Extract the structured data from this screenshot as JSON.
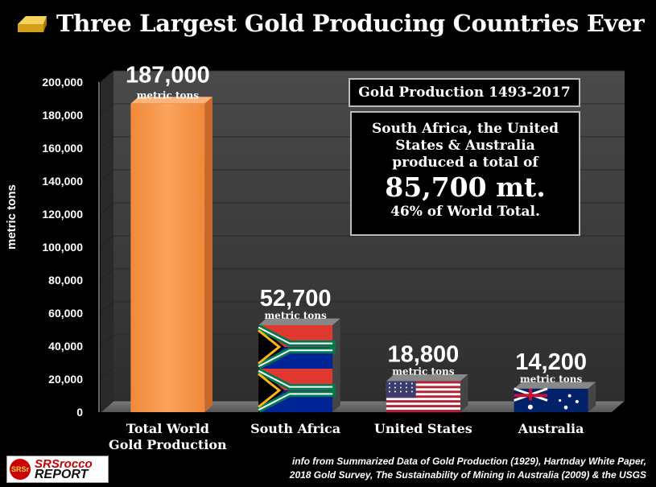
{
  "page": {
    "title": "Three Largest Gold Producing Countries Ever",
    "title_icon": "gold-bar-icon",
    "info_box_title": "Gold Production 1493-2017",
    "summary": {
      "line1": "South Africa, the United",
      "line2": "States & Australia",
      "line3": "produced a total of",
      "total": "85,700 mt.",
      "share": "46% of World Total."
    },
    "source_line1": "info from Summarized Data of Gold Production (1929), Hartnday White Paper,",
    "source_line2": "2018 Gold Survey, The Sustainability of Mining in Australia (2009) & the USGS",
    "logo": {
      "badge": "SRSr",
      "line1": "SRSrocco",
      "line2": "REPORT"
    }
  },
  "chart_data": {
    "type": "bar",
    "title": "Three Largest Gold Producing Countries Ever",
    "ylabel": "metric tons",
    "ylim": [
      0,
      200000
    ],
    "yticks": [
      "0",
      "20,000",
      "40,000",
      "60,000",
      "80,000",
      "100,000",
      "120,000",
      "140,000",
      "160,000",
      "180,000",
      "200,000"
    ],
    "categories": [
      [
        "Total World",
        "Gold Production"
      ],
      [
        "South Africa"
      ],
      [
        "United States"
      ],
      [
        "Australia"
      ]
    ],
    "values": [
      187000,
      52700,
      18800,
      14200
    ],
    "value_labels": [
      "187,000",
      "52,700",
      "18,800",
      "14,200"
    ],
    "unit_label": "metric tons",
    "bar_fills": [
      "orange",
      "flag-south-africa",
      "flag-united-states",
      "flag-australia"
    ],
    "colors": {
      "world_bar": "#f7964a",
      "world_bar_side": "#c8692c",
      "wall": "#3a3a3a",
      "floor": "#5a5a5a"
    },
    "grid": true,
    "legend": "none"
  }
}
